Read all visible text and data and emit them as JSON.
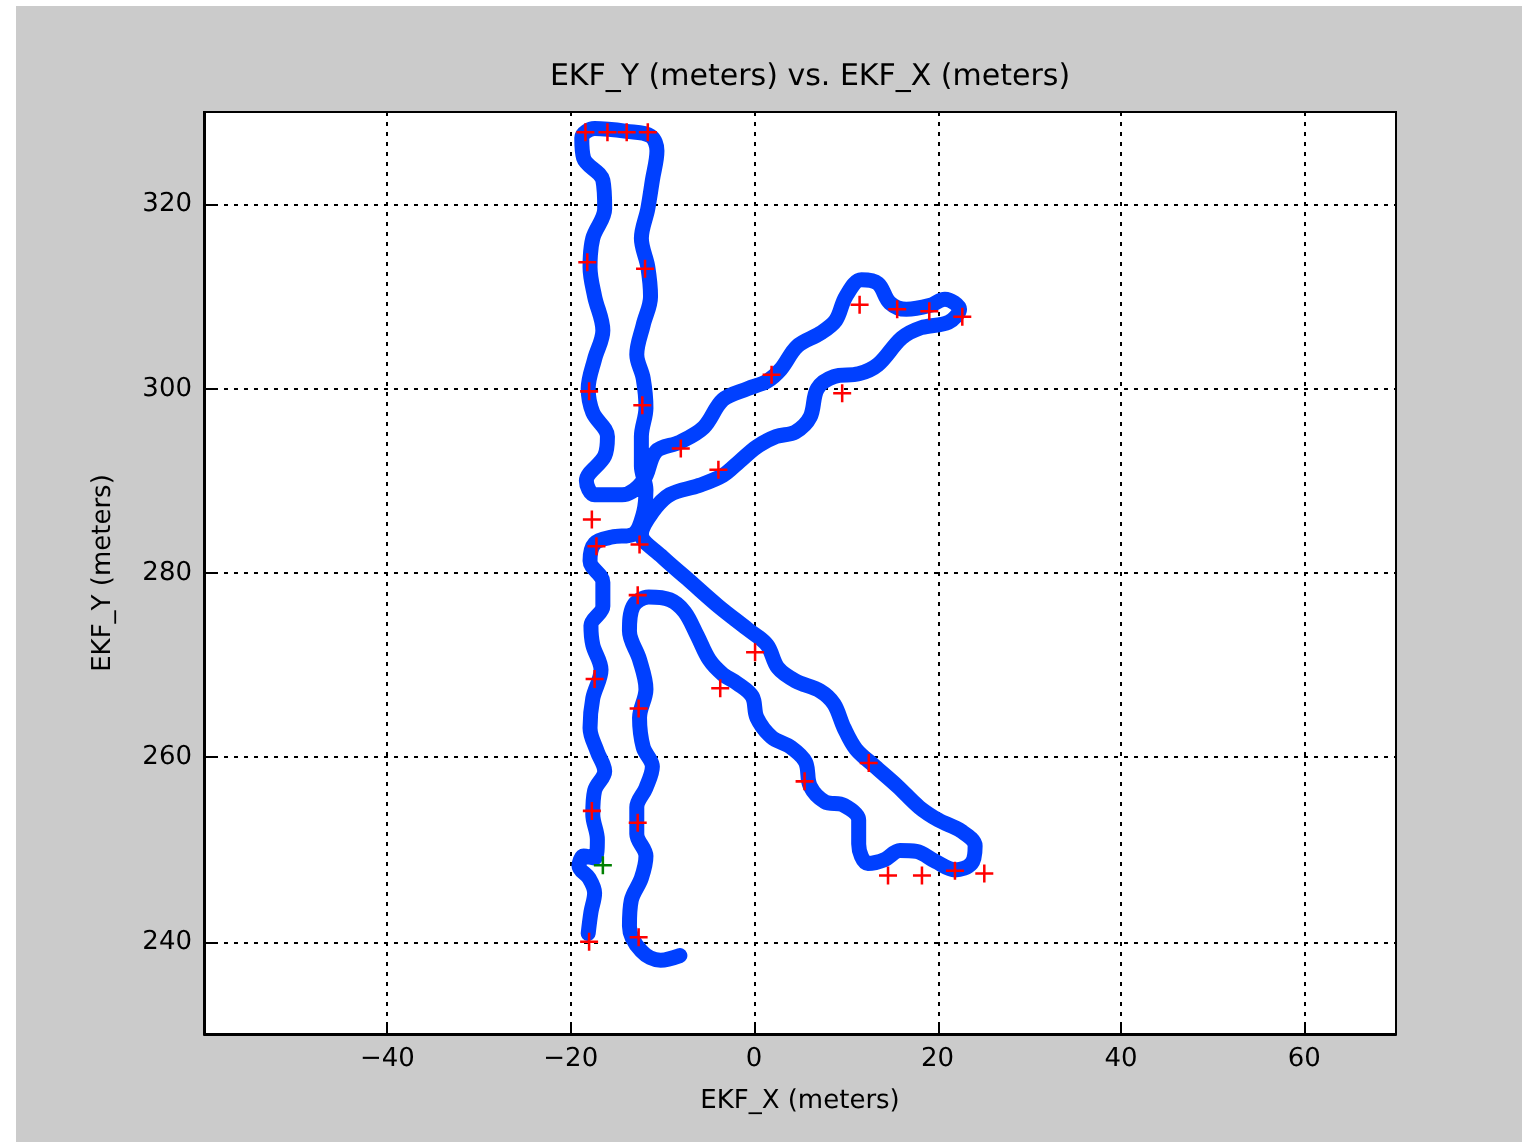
{
  "chart_data": {
    "type": "line",
    "title": "EKF_Y (meters) vs. EKF_X (meters)",
    "xlabel": "EKF_X (meters)",
    "ylabel": "EKF_Y (meters)",
    "xlim": [
      -60,
      70
    ],
    "ylim": [
      230,
      330
    ],
    "xticks": [
      {
        "value": -40,
        "label": "−40"
      },
      {
        "value": -20,
        "label": "−20"
      },
      0,
      20,
      40,
      60
    ],
    "yticks": [
      240,
      260,
      280,
      300,
      320
    ],
    "grid": true,
    "series": [
      {
        "marker": "none",
        "line_style": "solid",
        "color": "#0040ff",
        "x": [
          -18.1,
          -17.8,
          -17.4,
          -18.0,
          -19.1,
          -18.6,
          -17.4,
          -17.1,
          -17.6,
          -17.4,
          -16.3,
          -17.1,
          -17.9,
          -17.6,
          -16.7,
          -17.6,
          -17.8,
          -16.5,
          -16.5,
          -17.9,
          -17.4,
          -15.5,
          -13.2,
          -12.1,
          -11.8,
          -12.3,
          -12.3,
          -11.8,
          -12.1,
          -12.8,
          -12.1,
          -11.3,
          -11.6,
          -12.3,
          -11.6,
          -11.1,
          -10.6,
          -11.3,
          -13.9,
          -17.4,
          -18.8,
          -18.6,
          -16.5,
          -16.3,
          -17.6,
          -17.9,
          -17.4,
          -16.5,
          -17.4,
          -18.1,
          -17.6,
          -16.0,
          -16.3,
          -18.3,
          -17.4,
          -14.4,
          -12.1,
          -10.7,
          -8.1,
          -5.5,
          -3.4,
          -0.7,
          1.4,
          2.9,
          4.7,
          7.2,
          8.9,
          10.0,
          11.7,
          13.5,
          14.8,
          16.6,
          19.1,
          20.8,
          22.4,
          21.2,
          18.2,
          16.1,
          13.5,
          11.4,
          8.7,
          6.9,
          6.1,
          4.5,
          2.4,
          0.3,
          -1.6,
          -3.4,
          -6.0,
          -9.2,
          -11.1,
          -12.3,
          -10.2,
          -7.1,
          -3.9,
          -0.7,
          1.4,
          2.6,
          4.5,
          7.2,
          8.7,
          9.8,
          11.1,
          13.2,
          15.6,
          18.0,
          20.1,
          22.6,
          24.1,
          23.7,
          21.9,
          19.8,
          17.7,
          15.9,
          14.2,
          12.4,
          11.4,
          11.4,
          9.8,
          7.7,
          6.1,
          5.6,
          4.0,
          1.9,
          0.3,
          -0.2,
          -1.8,
          -3.4,
          -4.9,
          -6.2,
          -7.6,
          -9.2,
          -11.5,
          -13.2,
          -13.6,
          -12.5,
          -11.8,
          -12.5,
          -12.1,
          -11.1,
          -11.8,
          -12.8,
          -12.8,
          -11.8,
          -12.3,
          -13.4,
          -13.6,
          -12.3,
          -10.2,
          -8.1
        ],
        "values": [
          240.9,
          243.2,
          245.3,
          246.9,
          248.2,
          249.3,
          249.1,
          251.1,
          253.8,
          256.4,
          258.5,
          260.6,
          263.2,
          266.4,
          269.5,
          272.2,
          274.3,
          276.4,
          279.0,
          281.3,
          283.2,
          283.9,
          284.2,
          286.4,
          289.0,
          291.6,
          294.8,
          297.9,
          301.1,
          303.7,
          306.9,
          310.0,
          313.2,
          316.3,
          319.5,
          322.6,
          325.8,
          327.4,
          327.9,
          328.2,
          327.2,
          325.0,
          322.6,
          319.5,
          316.3,
          313.2,
          310.0,
          306.3,
          303.2,
          300.0,
          297.4,
          294.8,
          292.7,
          290.0,
          288.5,
          288.5,
          290.0,
          293.2,
          294.2,
          295.8,
          298.8,
          300.0,
          300.8,
          302.1,
          304.6,
          306.0,
          307.4,
          310.0,
          311.8,
          311.4,
          309.3,
          308.6,
          309.0,
          309.7,
          308.6,
          307.2,
          306.6,
          305.5,
          302.6,
          301.6,
          301.3,
          300.0,
          296.9,
          295.3,
          294.8,
          293.7,
          292.1,
          290.6,
          289.5,
          288.5,
          286.6,
          284.2,
          281.9,
          279.2,
          276.4,
          273.9,
          272.2,
          269.7,
          268.3,
          267.2,
          265.8,
          263.2,
          260.9,
          259.0,
          256.9,
          254.6,
          253.2,
          252.0,
          250.4,
          248.5,
          247.8,
          248.7,
          249.8,
          249.9,
          248.9,
          248.5,
          250.6,
          253.2,
          254.8,
          255.2,
          256.9,
          259.5,
          261.1,
          262.2,
          264.3,
          266.6,
          268.0,
          269.0,
          270.6,
          273.2,
          275.8,
          277.1,
          277.4,
          276.4,
          273.7,
          270.6,
          267.4,
          264.3,
          261.1,
          259.0,
          256.7,
          254.6,
          251.7,
          249.3,
          246.9,
          244.5,
          241.7,
          239.0,
          238.0,
          238.5
        ]
      },
      {
        "type": "scatter",
        "marker": "cross",
        "color": "#ff0000",
        "x": [
          -18.4,
          -16.0,
          -13.9,
          -11.6,
          -18.2,
          -11.9,
          -18.0,
          -12.2,
          -17.7,
          -17.2,
          -12.5,
          -8.0,
          -3.9,
          1.9,
          9.6,
          11.5,
          15.6,
          19.1,
          22.7,
          -12.7,
          0.1,
          -3.7,
          -17.4,
          -12.6,
          12.5,
          5.5,
          -17.7,
          -12.7,
          14.6,
          18.3,
          21.9,
          25.1,
          -18.0,
          -12.6
        ],
        "values": [
          327.8,
          327.8,
          327.8,
          327.8,
          313.7,
          313.0,
          299.7,
          298.2,
          285.8,
          282.9,
          283.1,
          293.5,
          291.2,
          301.5,
          299.5,
          309.1,
          308.6,
          308.4,
          307.8,
          277.6,
          271.4,
          267.5,
          268.5,
          265.3,
          259.4,
          257.4,
          254.2,
          252.9,
          247.2,
          247.2,
          247.7,
          247.4,
          240.0,
          240.5
        ]
      },
      {
        "type": "scatter",
        "marker": "cross",
        "color": "#008000",
        "x": [
          -16.5
        ],
        "values": [
          248.3
        ]
      }
    ]
  }
}
